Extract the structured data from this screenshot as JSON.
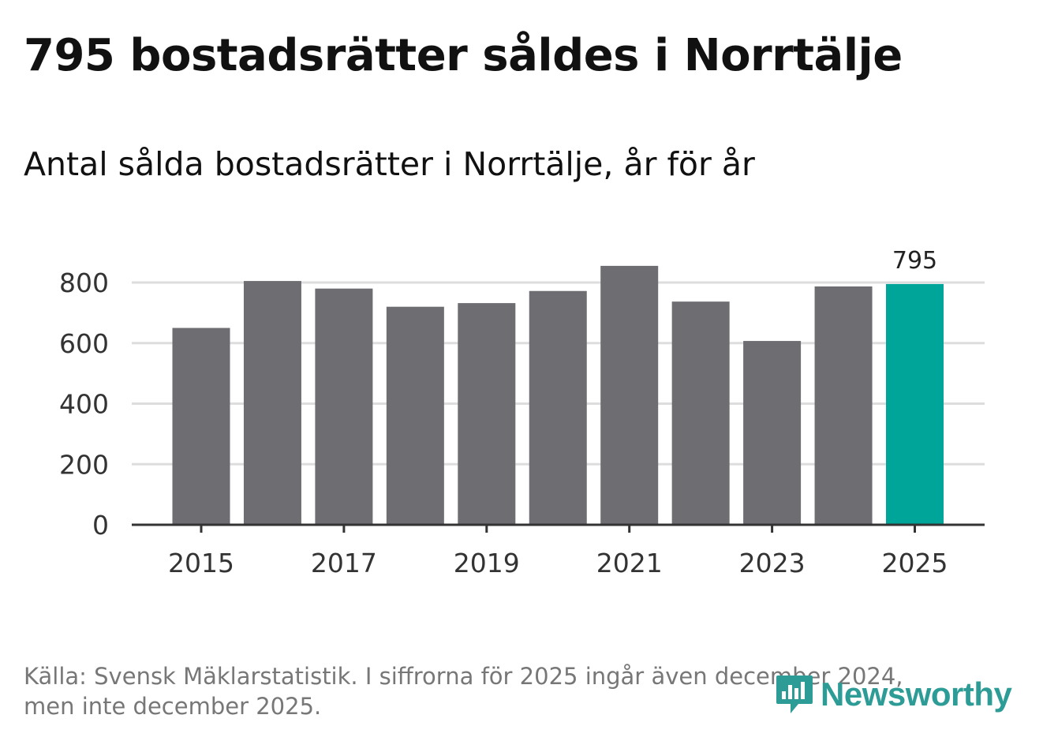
{
  "title": "795 bostadsrätter såldes i Norrtälje",
  "subtitle": "Antal sålda bostadsrätter i Norrtälje, år för år",
  "footer": {
    "line1": "Källa: Svensk Mäklarstatistik. I siffrorna för 2025 ingår även december 2024,",
    "line2": "men inte december 2025."
  },
  "logo": {
    "text": "Newsworthy",
    "icon": "newsworthy-chart-bubble-icon",
    "color": "#2e9c96"
  },
  "colors": {
    "bar": "#6e6d72",
    "highlight": "#00a599",
    "grid": "#dddddd",
    "axis": "#333333"
  },
  "chart_data": {
    "type": "bar",
    "title": "Antal sålda bostadsrätter i Norrtälje, år för år",
    "xlabel": "",
    "ylabel": "",
    "categories": [
      "2015",
      "2016",
      "2017",
      "2018",
      "2019",
      "2020",
      "2021",
      "2022",
      "2023",
      "2024",
      "2025"
    ],
    "values": [
      650,
      805,
      780,
      720,
      732,
      772,
      855,
      737,
      607,
      787,
      795
    ],
    "ylim": [
      0,
      800
    ],
    "yticks": [
      0,
      200,
      400,
      600,
      800
    ],
    "xtick_labels": [
      "2015",
      "2017",
      "2019",
      "2021",
      "2023",
      "2025"
    ],
    "highlight_index": 10,
    "data_labels": [
      {
        "index": 10,
        "text": "795"
      }
    ],
    "grid": true
  }
}
